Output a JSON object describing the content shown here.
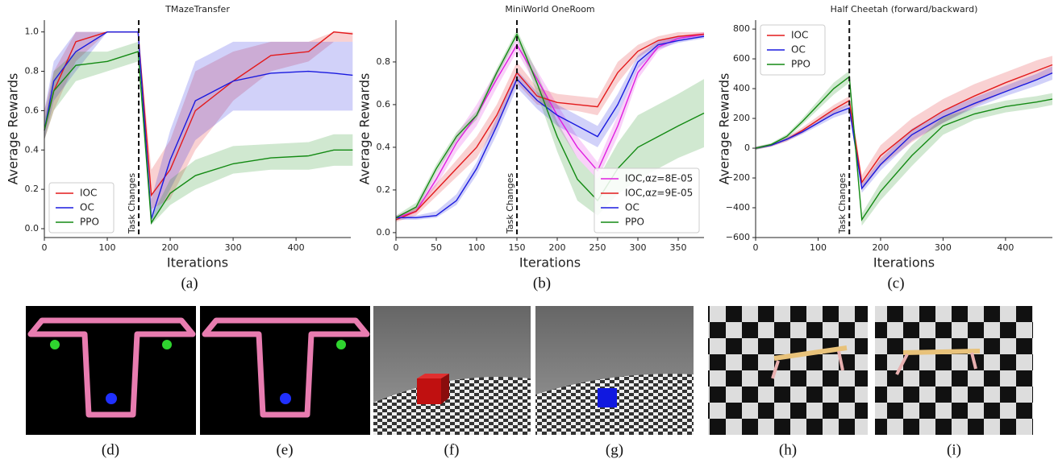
{
  "chart_data": [
    {
      "type": "line",
      "title": "TMazeTransfer",
      "x_label": "Iterations",
      "y_label": "Average Rewards",
      "caption": "(a)",
      "x": [
        0,
        15,
        50,
        100,
        149,
        170,
        200,
        240,
        300,
        360,
        420,
        460,
        490
      ],
      "xlim": [
        0,
        487
      ],
      "xticks": [
        0,
        100,
        200,
        300,
        400
      ],
      "ylim": [
        -0.045,
        1.06
      ],
      "yticks": [
        {
          "value": 0,
          "label": "0.0"
        },
        0.2,
        0.4,
        0.6,
        0.8,
        {
          "value": 1,
          "label": "1.0"
        }
      ],
      "legend": "lower left",
      "annotations": [
        {
          "text": "Task Changes",
          "x": 150
        }
      ],
      "series": [
        {
          "name": "IOC",
          "color": "#e31a1c",
          "values": [
            0.5,
            0.7,
            0.95,
            1.0,
            1.0,
            0.17,
            0.3,
            0.6,
            0.75,
            0.88,
            0.9,
            1.0,
            0.99
          ],
          "lower": [
            0.45,
            0.6,
            0.85,
            1.0,
            1.0,
            0.1,
            0.15,
            0.4,
            0.65,
            0.8,
            0.85,
            0.95,
            0.95
          ],
          "upper": [
            0.6,
            0.8,
            1.0,
            1.0,
            1.0,
            0.3,
            0.45,
            0.8,
            0.9,
            0.95,
            0.95,
            1.0,
            1.0
          ]
        },
        {
          "name": "OC",
          "color": "#1a1adf",
          "values": [
            0.5,
            0.75,
            0.9,
            1.0,
            1.0,
            0.05,
            0.35,
            0.65,
            0.75,
            0.79,
            0.8,
            0.79,
            0.78
          ],
          "lower": [
            0.45,
            0.65,
            0.8,
            1.0,
            1.0,
            0.02,
            0.2,
            0.45,
            0.6,
            0.6,
            0.6,
            0.6,
            0.6
          ],
          "upper": [
            0.6,
            0.85,
            1.0,
            1.0,
            1.0,
            0.15,
            0.5,
            0.85,
            0.95,
            0.95,
            0.95,
            0.95,
            0.95
          ]
        },
        {
          "name": "PPO",
          "color": "#138a13",
          "values": [
            0.5,
            0.7,
            0.83,
            0.85,
            0.9,
            0.03,
            0.18,
            0.27,
            0.33,
            0.36,
            0.37,
            0.4,
            0.4
          ],
          "lower": [
            0.45,
            0.6,
            0.75,
            0.8,
            0.85,
            0.02,
            0.12,
            0.2,
            0.28,
            0.3,
            0.3,
            0.32,
            0.32
          ],
          "upper": [
            0.55,
            0.8,
            0.9,
            0.9,
            0.95,
            0.06,
            0.25,
            0.35,
            0.42,
            0.43,
            0.44,
            0.48,
            0.48
          ]
        }
      ]
    },
    {
      "type": "line",
      "title": "MiniWorld OneRoom",
      "x_label": "Iterations",
      "y_label": "Average Rewards",
      "caption": "(b)",
      "x": [
        0,
        25,
        50,
        75,
        100,
        125,
        150,
        175,
        200,
        225,
        250,
        275,
        300,
        325,
        350,
        382
      ],
      "xlim": [
        0,
        382
      ],
      "xticks": [
        0,
        50,
        100,
        150,
        200,
        250,
        300,
        350
      ],
      "ylim": [
        -0.023,
        0.996
      ],
      "yticks": [
        {
          "value": 0,
          "label": "0.0"
        },
        0.2,
        0.4,
        0.6,
        0.8
      ],
      "legend": "lower right",
      "annotations": [
        {
          "text": "Task Changes",
          "x": 150
        }
      ],
      "series": [
        {
          "name": "IOC,αz=8E-05",
          "color": "#e01fe0",
          "values": [
            0.07,
            0.1,
            0.25,
            0.42,
            0.55,
            0.72,
            0.88,
            0.72,
            0.55,
            0.4,
            0.29,
            0.5,
            0.75,
            0.87,
            0.91,
            0.93
          ],
          "lower": [
            0.06,
            0.09,
            0.22,
            0.38,
            0.5,
            0.68,
            0.85,
            0.68,
            0.5,
            0.35,
            0.25,
            0.45,
            0.72,
            0.85,
            0.9,
            0.92
          ],
          "upper": [
            0.08,
            0.12,
            0.28,
            0.46,
            0.6,
            0.76,
            0.91,
            0.76,
            0.6,
            0.45,
            0.33,
            0.55,
            0.78,
            0.89,
            0.92,
            0.94
          ]
        },
        {
          "name": "IOC,αz=9E-05",
          "color": "#e31a1c",
          "values": [
            0.06,
            0.1,
            0.2,
            0.3,
            0.4,
            0.55,
            0.75,
            0.64,
            0.61,
            0.6,
            0.59,
            0.75,
            0.85,
            0.9,
            0.92,
            0.93
          ],
          "lower": [
            0.05,
            0.08,
            0.17,
            0.26,
            0.35,
            0.5,
            0.7,
            0.6,
            0.58,
            0.57,
            0.55,
            0.7,
            0.82,
            0.88,
            0.91,
            0.92
          ],
          "upper": [
            0.07,
            0.12,
            0.23,
            0.34,
            0.45,
            0.6,
            0.8,
            0.68,
            0.65,
            0.64,
            0.63,
            0.8,
            0.88,
            0.92,
            0.94,
            0.94
          ]
        },
        {
          "name": "OC",
          "color": "#1a1adf",
          "values": [
            0.07,
            0.07,
            0.08,
            0.15,
            0.3,
            0.5,
            0.72,
            0.62,
            0.55,
            0.5,
            0.45,
            0.6,
            0.8,
            0.88,
            0.9,
            0.92
          ],
          "lower": [
            0.06,
            0.06,
            0.07,
            0.13,
            0.27,
            0.46,
            0.68,
            0.58,
            0.5,
            0.45,
            0.4,
            0.55,
            0.77,
            0.86,
            0.89,
            0.91
          ],
          "upper": [
            0.08,
            0.08,
            0.1,
            0.18,
            0.33,
            0.54,
            0.76,
            0.66,
            0.6,
            0.55,
            0.5,
            0.65,
            0.83,
            0.9,
            0.92,
            0.93
          ]
        },
        {
          "name": "PPO",
          "color": "#138a13",
          "values": [
            0.07,
            0.12,
            0.3,
            0.45,
            0.55,
            0.75,
            0.93,
            0.7,
            0.45,
            0.25,
            0.15,
            0.3,
            0.4,
            0.45,
            0.5,
            0.56
          ],
          "lower": [
            0.06,
            0.1,
            0.28,
            0.43,
            0.53,
            0.73,
            0.91,
            0.65,
            0.38,
            0.15,
            0.08,
            0.18,
            0.25,
            0.3,
            0.35,
            0.4
          ],
          "upper": [
            0.08,
            0.14,
            0.32,
            0.47,
            0.57,
            0.77,
            0.95,
            0.75,
            0.52,
            0.35,
            0.25,
            0.42,
            0.55,
            0.6,
            0.65,
            0.72
          ]
        }
      ]
    },
    {
      "type": "line",
      "title": "Half Cheetah (forward/backward)",
      "x_label": "Iterations",
      "y_label": "Average Rewards",
      "caption": "(c)",
      "x": [
        0,
        25,
        50,
        75,
        100,
        125,
        150,
        170,
        200,
        250,
        300,
        350,
        400,
        450,
        475
      ],
      "xlim": [
        0,
        475
      ],
      "xticks": [
        0,
        100,
        200,
        300,
        400
      ],
      "ylim": [
        -600,
        860
      ],
      "yticks": [
        {
          "value": -600,
          "label": "−600"
        },
        {
          "value": -400,
          "label": "−400"
        },
        {
          "value": -200,
          "label": "−200"
        },
        0,
        200,
        400,
        600,
        800
      ],
      "legend": "upper left",
      "annotations": [
        {
          "text": "Task Changes",
          "x": 150
        }
      ],
      "series": [
        {
          "name": "IOC",
          "color": "#e31a1c",
          "values": [
            0,
            20,
            60,
            120,
            190,
            260,
            320,
            -230,
            -50,
            120,
            250,
            350,
            440,
            520,
            560
          ],
          "lower": [
            -10,
            10,
            45,
            100,
            165,
            230,
            290,
            -280,
            -120,
            40,
            170,
            280,
            380,
            460,
            500
          ],
          "upper": [
            10,
            30,
            75,
            140,
            215,
            290,
            350,
            -180,
            20,
            200,
            330,
            430,
            510,
            590,
            620
          ]
        },
        {
          "name": "OC",
          "color": "#1a1adf",
          "values": [
            0,
            20,
            60,
            110,
            170,
            230,
            270,
            -270,
            -110,
            90,
            210,
            300,
            380,
            460,
            505
          ],
          "lower": [
            -10,
            12,
            48,
            95,
            150,
            205,
            240,
            -300,
            -150,
            50,
            170,
            270,
            350,
            420,
            460
          ],
          "upper": [
            10,
            28,
            72,
            125,
            190,
            255,
            300,
            -240,
            -70,
            130,
            250,
            340,
            420,
            500,
            550
          ]
        },
        {
          "name": "PPO",
          "color": "#138a13",
          "values": [
            0,
            25,
            80,
            180,
            290,
            400,
            480,
            -480,
            -290,
            -50,
            150,
            230,
            280,
            310,
            330
          ],
          "lower": [
            -10,
            15,
            65,
            160,
            260,
            360,
            440,
            -520,
            -350,
            -120,
            90,
            190,
            240,
            270,
            290
          ],
          "upper": [
            10,
            35,
            95,
            200,
            320,
            440,
            520,
            -440,
            -230,
            20,
            210,
            270,
            320,
            350,
            370
          ]
        }
      ]
    }
  ],
  "captions": [
    "(d)",
    "(e)",
    "(f)",
    "(g)",
    "(h)",
    "(i)"
  ]
}
